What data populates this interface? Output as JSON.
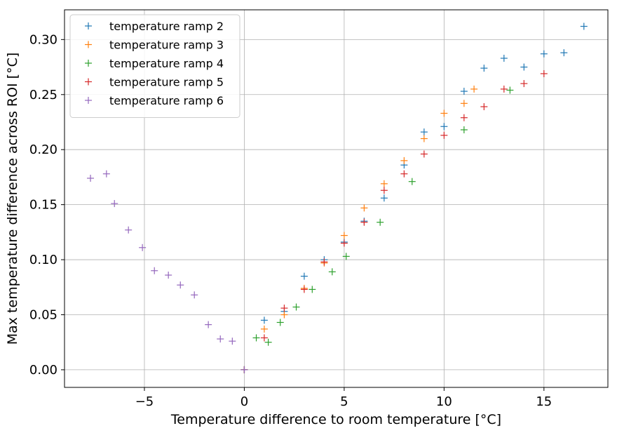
{
  "chart_data": {
    "type": "scatter",
    "marker": "+",
    "xlabel": "Temperature difference to room temperature [°C]",
    "ylabel": "Max temperature difference across ROI [°C]",
    "xlim": [
      -9.0,
      18.2
    ],
    "ylim": [
      -0.016,
      0.327
    ],
    "xticks": [
      -5,
      0,
      5,
      10,
      15
    ],
    "xtick_labels": [
      "−5",
      "0",
      "5",
      "10",
      "15"
    ],
    "yticks": [
      0.0,
      0.05,
      0.1,
      0.15,
      0.2,
      0.25,
      0.3
    ],
    "ytick_labels": [
      "0.00",
      "0.05",
      "0.10",
      "0.15",
      "0.20",
      "0.25",
      "0.30"
    ],
    "grid": true,
    "legend_position": "upper-left",
    "series": [
      {
        "name": "temperature ramp 2",
        "color": "#1f77b4",
        "points": [
          [
            0,
            0.0
          ],
          [
            1,
            0.045
          ],
          [
            2,
            0.053
          ],
          [
            3,
            0.085
          ],
          [
            4,
            0.1
          ],
          [
            5,
            0.116
          ],
          [
            6,
            0.135
          ],
          [
            7,
            0.156
          ],
          [
            8,
            0.186
          ],
          [
            9,
            0.216
          ],
          [
            10,
            0.221
          ],
          [
            11,
            0.253
          ],
          [
            12,
            0.274
          ],
          [
            13,
            0.283
          ],
          [
            14,
            0.275
          ],
          [
            15,
            0.287
          ],
          [
            16,
            0.288
          ],
          [
            17,
            0.312
          ]
        ]
      },
      {
        "name": "temperature ramp 3",
        "color": "#ff7f0e",
        "points": [
          [
            0,
            0.0
          ],
          [
            1,
            0.037
          ],
          [
            2,
            0.05
          ],
          [
            3,
            0.074
          ],
          [
            4,
            0.097
          ],
          [
            5,
            0.122
          ],
          [
            6,
            0.147
          ],
          [
            7,
            0.169
          ],
          [
            8,
            0.19
          ],
          [
            9,
            0.21
          ],
          [
            10,
            0.233
          ],
          [
            11,
            0.242
          ],
          [
            11.5,
            0.255
          ]
        ]
      },
      {
        "name": "temperature ramp 4",
        "color": "#2ca02c",
        "points": [
          [
            0,
            0.0
          ],
          [
            0.6,
            0.029
          ],
          [
            1.2,
            0.025
          ],
          [
            1.8,
            0.043
          ],
          [
            2.6,
            0.057
          ],
          [
            3.4,
            0.073
          ],
          [
            4.4,
            0.089
          ],
          [
            5.1,
            0.103
          ],
          [
            6.8,
            0.134
          ],
          [
            8.4,
            0.171
          ],
          [
            11,
            0.218
          ],
          [
            13.3,
            0.254
          ]
        ]
      },
      {
        "name": "temperature ramp 5",
        "color": "#d62728",
        "points": [
          [
            0,
            0.0
          ],
          [
            1,
            0.029
          ],
          [
            2,
            0.056
          ],
          [
            3,
            0.073
          ],
          [
            4,
            0.098
          ],
          [
            5,
            0.115
          ],
          [
            6,
            0.134
          ],
          [
            7,
            0.163
          ],
          [
            8,
            0.178
          ],
          [
            9,
            0.196
          ],
          [
            10,
            0.213
          ],
          [
            11,
            0.229
          ],
          [
            12,
            0.239
          ],
          [
            13,
            0.255
          ],
          [
            14,
            0.26
          ],
          [
            15,
            0.269
          ]
        ]
      },
      {
        "name": "temperature ramp 6",
        "color": "#9467bd",
        "points": [
          [
            0,
            0.0
          ],
          [
            -0.6,
            0.026
          ],
          [
            -1.2,
            0.028
          ],
          [
            -1.8,
            0.041
          ],
          [
            -2.5,
            0.068
          ],
          [
            -3.2,
            0.077
          ],
          [
            -3.8,
            0.086
          ],
          [
            -4.5,
            0.09
          ],
          [
            -5.1,
            0.111
          ],
          [
            -5.8,
            0.127
          ],
          [
            -6.5,
            0.151
          ],
          [
            -6.9,
            0.178
          ],
          [
            -7.7,
            0.174
          ]
        ]
      }
    ]
  }
}
